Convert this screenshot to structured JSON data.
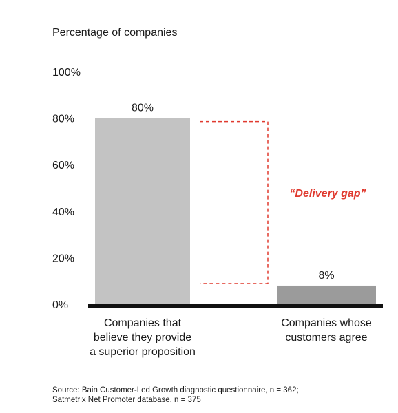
{
  "chart_data": {
    "type": "bar",
    "ylabel": "Percentage of companies",
    "ylim": [
      0,
      100
    ],
    "yticks": [
      "100%",
      "80%",
      "60%",
      "40%",
      "20%",
      "0%"
    ],
    "yticks_values": [
      100,
      80,
      60,
      40,
      20,
      0
    ],
    "categories": [
      [
        "Companies that",
        "believe they provide",
        "a superior proposition"
      ],
      [
        "Companies whose",
        "customers agree"
      ]
    ],
    "values": [
      80,
      8
    ],
    "data_labels": [
      "80%",
      "8%"
    ],
    "annotation": "“Delivery gap”",
    "colors": {
      "bar_1": "#c3c3c3",
      "bar_2": "#9b9b9b",
      "baseline": "#111111",
      "annotation": "#e03a2f"
    },
    "grid": false
  },
  "source": [
    "Source: Bain Customer-Led Growth diagnostic questionnaire, n = 362;",
    "Satmetrix Net Promoter database, n = 375"
  ]
}
